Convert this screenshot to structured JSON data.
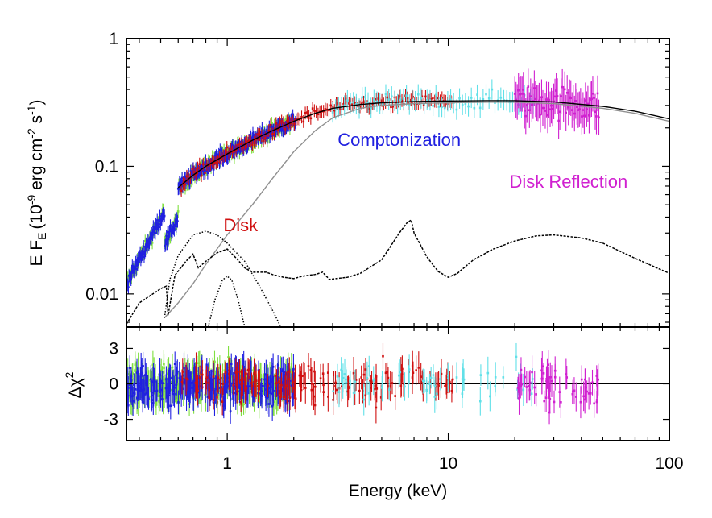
{
  "chart_data": [
    {
      "type": "line",
      "panel": "top",
      "xlabel": "Energy (keV)",
      "ylabel_main": "E F",
      "ylabel_sub": "E",
      "ylabel_units": "(10",
      "ylabel_exp1": "-9",
      "ylabel_mid": " erg cm",
      "ylabel_exp2": "-2",
      "ylabel_mid2": " s",
      "ylabel_exp3": "-1",
      "ylabel_end": ")",
      "xscale": "log",
      "yscale": "log",
      "xlim": [
        0.35,
        100
      ],
      "ylim": [
        0.0055,
        1
      ],
      "x_ticks": [
        {
          "v": 1,
          "label": "1"
        },
        {
          "v": 10,
          "label": "10"
        },
        {
          "v": 100,
          "label": "100"
        }
      ],
      "y_ticks": [
        {
          "v": 0.01,
          "label": "0.01"
        },
        {
          "v": 0.1,
          "label": "0.1"
        },
        {
          "v": 1,
          "label": "1"
        }
      ],
      "annotations": [
        {
          "text": "Comptonization",
          "color": "#2020e0",
          "x": 6.0,
          "y": 0.145
        },
        {
          "text": "Disk",
          "color": "#d01010",
          "x": 1.15,
          "y": 0.031
        },
        {
          "text": "Disk Reflection",
          "color": "#d020d0",
          "x": 35,
          "y": 0.068
        }
      ],
      "series": [
        {
          "name": "total-model-black",
          "style": "solid",
          "color": "#000000",
          "points": [
            [
              0.6,
              0.068
            ],
            [
              0.7,
              0.085
            ],
            [
              0.8,
              0.1
            ],
            [
              1.0,
              0.125
            ],
            [
              1.3,
              0.16
            ],
            [
              1.6,
              0.19
            ],
            [
              2.0,
              0.225
            ],
            [
              2.5,
              0.26
            ],
            [
              3.0,
              0.285
            ],
            [
              4.0,
              0.305
            ],
            [
              5.0,
              0.315
            ],
            [
              7.0,
              0.322
            ],
            [
              10,
              0.325
            ],
            [
              15,
              0.327
            ],
            [
              20,
              0.327
            ],
            [
              30,
              0.32
            ],
            [
              50,
              0.295
            ],
            [
              70,
              0.27
            ],
            [
              100,
              0.235
            ]
          ]
        },
        {
          "name": "comptonization-gray",
          "style": "solid",
          "color": "#909090",
          "points": [
            [
              0.52,
              0.0065
            ],
            [
              0.6,
              0.0085
            ],
            [
              0.7,
              0.012
            ],
            [
              0.8,
              0.017
            ],
            [
              1.0,
              0.029
            ],
            [
              1.3,
              0.05
            ],
            [
              1.6,
              0.08
            ],
            [
              2.0,
              0.13
            ],
            [
              2.5,
              0.19
            ],
            [
              3.0,
              0.24
            ],
            [
              4.0,
              0.285
            ],
            [
              5.0,
              0.3
            ],
            [
              7.0,
              0.31
            ],
            [
              10,
              0.315
            ],
            [
              15,
              0.318
            ],
            [
              20,
              0.318
            ],
            [
              30,
              0.31
            ],
            [
              50,
              0.285
            ],
            [
              70,
              0.26
            ],
            [
              100,
              0.225
            ]
          ]
        },
        {
          "name": "disk-dotted",
          "style": "dotted",
          "color": "#000000",
          "points": [
            [
              0.52,
              0.0065
            ],
            [
              0.55,
              0.013
            ],
            [
              0.6,
              0.02
            ],
            [
              0.7,
              0.029
            ],
            [
              0.8,
              0.031
            ],
            [
              0.9,
              0.029
            ],
            [
              1.0,
              0.025
            ],
            [
              1.2,
              0.018
            ],
            [
              1.4,
              0.0115
            ],
            [
              1.6,
              0.0075
            ],
            [
              1.75,
              0.0055
            ]
          ]
        },
        {
          "name": "reflection-dashed",
          "style": "dashed",
          "color": "#000000",
          "points": [
            [
              0.35,
              0.0058
            ],
            [
              0.4,
              0.0085
            ],
            [
              0.5,
              0.011
            ],
            [
              0.53,
              0.0115
            ],
            [
              0.54,
              0.0068
            ],
            [
              0.58,
              0.014
            ],
            [
              0.65,
              0.018
            ],
            [
              0.7,
              0.0205
            ],
            [
              0.74,
              0.016
            ],
            [
              0.8,
              0.018
            ],
            [
              0.9,
              0.021
            ],
            [
              1.0,
              0.0225
            ],
            [
              1.1,
              0.019
            ],
            [
              1.2,
              0.016
            ],
            [
              1.3,
              0.0148
            ],
            [
              1.5,
              0.0148
            ],
            [
              1.6,
              0.0142
            ],
            [
              1.8,
              0.0135
            ],
            [
              2.0,
              0.0132
            ],
            [
              2.2,
              0.0138
            ],
            [
              2.5,
              0.0142
            ],
            [
              2.7,
              0.0148
            ],
            [
              2.9,
              0.013
            ],
            [
              3.5,
              0.0135
            ],
            [
              4.0,
              0.0145
            ],
            [
              5.0,
              0.0185
            ],
            [
              6.0,
              0.03
            ],
            [
              6.5,
              0.036
            ],
            [
              6.8,
              0.038
            ],
            [
              7.0,
              0.03
            ],
            [
              8.0,
              0.0195
            ],
            [
              9.0,
              0.015
            ],
            [
              10,
              0.0135
            ],
            [
              11,
              0.0145
            ],
            [
              13,
              0.0185
            ],
            [
              16,
              0.0225
            ],
            [
              20,
              0.026
            ],
            [
              25,
              0.0285
            ],
            [
              30,
              0.029
            ],
            [
              40,
              0.0275
            ],
            [
              50,
              0.025
            ],
            [
              70,
              0.019
            ],
            [
              100,
              0.0145
            ]
          ]
        },
        {
          "name": "disk-line-dotted",
          "style": "dotted",
          "color": "#000000",
          "points": [
            [
              0.82,
              0.0055
            ],
            [
              0.88,
              0.009
            ],
            [
              0.95,
              0.0128
            ],
            [
              1.0,
              0.0138
            ],
            [
              1.05,
              0.0128
            ],
            [
              1.12,
              0.009
            ],
            [
              1.2,
              0.0055
            ]
          ]
        }
      ],
      "data_sets": [
        {
          "name": "green",
          "color": "#80e040",
          "xmin": 0.35,
          "xmax": 2.0
        },
        {
          "name": "blue",
          "color": "#2020e0",
          "xmin": 0.35,
          "xmax": 2.05
        },
        {
          "name": "red",
          "color": "#d01010",
          "xmin": 0.62,
          "xmax": 10.5
        },
        {
          "name": "cyan",
          "color": "#60e0e8",
          "xmin": 3.0,
          "xmax": 25
        },
        {
          "name": "magenta",
          "color": "#d020d0",
          "xmin": 20,
          "xmax": 48
        }
      ]
    },
    {
      "type": "scatter",
      "panel": "bottom",
      "ylabel": "Δχ",
      "ylabel_exp": "2",
      "xscale": "log",
      "xlim": [
        0.35,
        100
      ],
      "ylim": [
        -4.8,
        4.8
      ],
      "y_ticks": [
        {
          "v": 3,
          "label": "3"
        },
        {
          "v": 0,
          "label": "0"
        },
        {
          "v": -3,
          "label": "-3"
        }
      ],
      "x_ticks": [
        {
          "v": 1,
          "label": "1"
        },
        {
          "v": 10,
          "label": "10"
        },
        {
          "v": 100,
          "label": "100"
        }
      ]
    }
  ]
}
